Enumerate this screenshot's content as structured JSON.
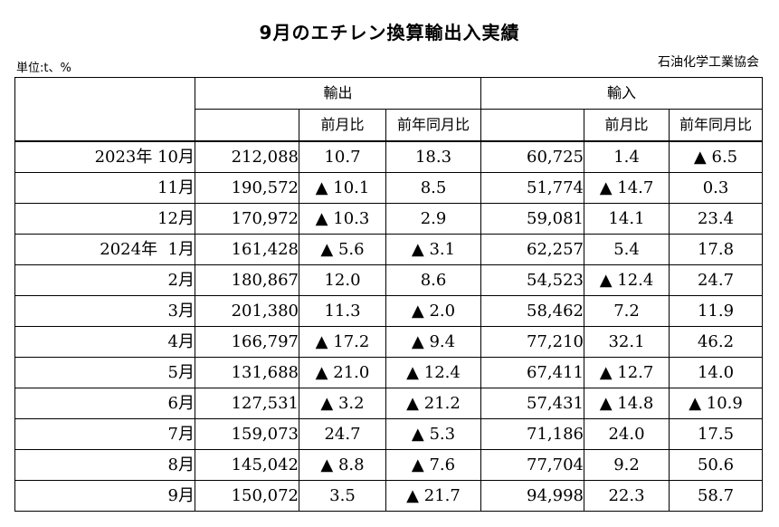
{
  "title": "9月のエチレン換算輸出入実績",
  "unit": "単位:t、%",
  "source": "石油化学工業協会",
  "headers": {
    "export": "輸出",
    "import": "輸入",
    "mom": "前月比",
    "yoy": "前年同月比"
  },
  "rows": [
    {
      "period": "2023年 10月",
      "export": "212,088",
      "export_mom": "10.7",
      "export_yoy": "18.3",
      "import": "60,725",
      "import_mom": "1.4",
      "import_yoy": "▲ 6.5"
    },
    {
      "period": "11月",
      "export": "190,572",
      "export_mom": "▲ 10.1",
      "export_yoy": "8.5",
      "import": "51,774",
      "import_mom": "▲ 14.7",
      "import_yoy": "0.3"
    },
    {
      "period": "12月",
      "export": "170,972",
      "export_mom": "▲ 10.3",
      "export_yoy": "2.9",
      "import": "59,081",
      "import_mom": "14.1",
      "import_yoy": "23.4"
    },
    {
      "period": "2024年  1月",
      "export": "161,428",
      "export_mom": "▲ 5.6",
      "export_yoy": "▲ 3.1",
      "import": "62,257",
      "import_mom": "5.4",
      "import_yoy": "17.8"
    },
    {
      "period": "2月",
      "export": "180,867",
      "export_mom": "12.0",
      "export_yoy": "8.6",
      "import": "54,523",
      "import_mom": "▲ 12.4",
      "import_yoy": "24.7"
    },
    {
      "period": "3月",
      "export": "201,380",
      "export_mom": "11.3",
      "export_yoy": "▲ 2.0",
      "import": "58,462",
      "import_mom": "7.2",
      "import_yoy": "11.9"
    },
    {
      "period": "4月",
      "export": "166,797",
      "export_mom": "▲ 17.2",
      "export_yoy": "▲ 9.4",
      "import": "77,210",
      "import_mom": "32.1",
      "import_yoy": "46.2"
    },
    {
      "period": "5月",
      "export": "131,688",
      "export_mom": "▲ 21.0",
      "export_yoy": "▲ 12.4",
      "import": "67,411",
      "import_mom": "▲ 12.7",
      "import_yoy": "14.0"
    },
    {
      "period": "6月",
      "export": "127,531",
      "export_mom": "▲ 3.2",
      "export_yoy": "▲ 21.2",
      "import": "57,431",
      "import_mom": "▲ 14.8",
      "import_yoy": "▲ 10.9"
    },
    {
      "period": "7月",
      "export": "159,073",
      "export_mom": "24.7",
      "export_yoy": "▲ 5.3",
      "import": "71,186",
      "import_mom": "24.0",
      "import_yoy": "17.5"
    },
    {
      "period": "8月",
      "export": "145,042",
      "export_mom": "▲ 8.8",
      "export_yoy": "▲ 7.6",
      "import": "77,704",
      "import_mom": "9.2",
      "import_yoy": "50.6"
    },
    {
      "period": "9月",
      "export": "150,072",
      "export_mom": "3.5",
      "export_yoy": "▲ 21.7",
      "import": "94,998",
      "import_mom": "22.3",
      "import_yoy": "58.7"
    }
  ]
}
